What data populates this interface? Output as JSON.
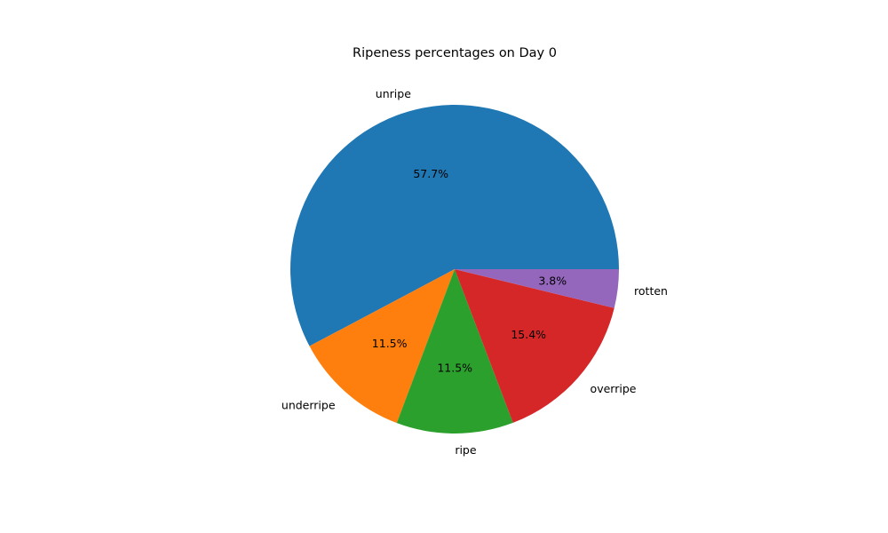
{
  "chart_data": {
    "type": "pie",
    "title": "Ripeness percentages on Day 0",
    "categories": [
      "unripe",
      "underripe",
      "ripe",
      "overripe",
      "rotten"
    ],
    "values": [
      57.7,
      11.5,
      11.5,
      15.4,
      3.8
    ],
    "value_labels": [
      "57.7%",
      "11.5%",
      "11.5%",
      "15.4%",
      "3.8%"
    ],
    "colors": [
      "#1f77b4",
      "#ff7f0e",
      "#2ca02c",
      "#d62728",
      "#9467bd"
    ],
    "start_angle_deg": 0,
    "direction": "counterclockwise",
    "legend": "none"
  }
}
